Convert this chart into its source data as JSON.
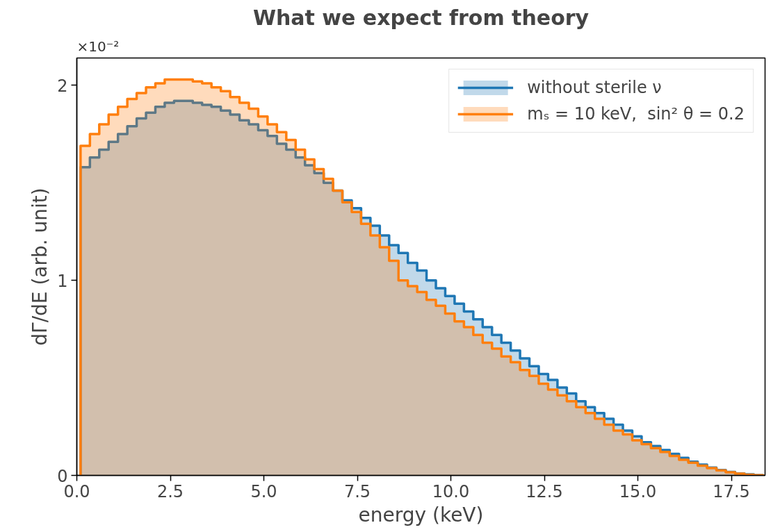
{
  "chart_data": {
    "type": "histogram",
    "title": "What we expect from theory",
    "xlabel": "energy (keV)",
    "ylabel": "dΓ/dE (arb. unit)",
    "annotations": [
      "×10⁻²"
    ],
    "bins": [
      0.1,
      0.35,
      0.6,
      0.85,
      1.1,
      1.35,
      1.6,
      1.85,
      2.1,
      2.35,
      2.6,
      2.85,
      3.1,
      3.35,
      3.6,
      3.85,
      4.1,
      4.35,
      4.6,
      4.85,
      5.1,
      5.35,
      5.6,
      5.85,
      6.1,
      6.35,
      6.6,
      6.85,
      7.1,
      7.35,
      7.6,
      7.85,
      8.1,
      8.35,
      8.6,
      8.85,
      9.1,
      9.35,
      9.6,
      9.85,
      10.1,
      10.35,
      10.6,
      10.85,
      11.1,
      11.35,
      11.6,
      11.85,
      12.1,
      12.35,
      12.6,
      12.85,
      13.1,
      13.35,
      13.6,
      13.85,
      14.1,
      14.35,
      14.6,
      14.85,
      15.1,
      15.35,
      15.6,
      15.85,
      16.1,
      16.35,
      16.6,
      16.85,
      17.1,
      17.35,
      17.6,
      17.85,
      18.1,
      18.35
    ],
    "series": [
      {
        "name": "without sterile ν",
        "color": "#1f77b4",
        "values": [
          1.58,
          1.63,
          1.67,
          1.71,
          1.75,
          1.79,
          1.83,
          1.86,
          1.89,
          1.91,
          1.92,
          1.92,
          1.91,
          1.9,
          1.89,
          1.87,
          1.85,
          1.82,
          1.8,
          1.77,
          1.74,
          1.7,
          1.67,
          1.63,
          1.59,
          1.55,
          1.5,
          1.46,
          1.41,
          1.37,
          1.32,
          1.28,
          1.23,
          1.18,
          1.14,
          1.09,
          1.05,
          1.0,
          0.96,
          0.92,
          0.88,
          0.84,
          0.8,
          0.76,
          0.72,
          0.68,
          0.64,
          0.6,
          0.56,
          0.52,
          0.49,
          0.45,
          0.42,
          0.38,
          0.35,
          0.32,
          0.29,
          0.26,
          0.23,
          0.2,
          0.17,
          0.15,
          0.13,
          0.11,
          0.09,
          0.07,
          0.055,
          0.04,
          0.028,
          0.018,
          0.01,
          0.005,
          0.001
        ]
      },
      {
        "name": "mₛ = 10 keV,  sin² θ = 0.2",
        "color": "#ff7f0e",
        "values": [
          1.69,
          1.75,
          1.8,
          1.85,
          1.89,
          1.93,
          1.96,
          1.99,
          2.01,
          2.03,
          2.03,
          2.03,
          2.02,
          2.01,
          1.99,
          1.97,
          1.94,
          1.91,
          1.88,
          1.84,
          1.8,
          1.76,
          1.72,
          1.67,
          1.62,
          1.57,
          1.52,
          1.46,
          1.4,
          1.35,
          1.29,
          1.23,
          1.17,
          1.1,
          1.0,
          0.97,
          0.94,
          0.9,
          0.87,
          0.83,
          0.79,
          0.76,
          0.72,
          0.68,
          0.65,
          0.61,
          0.58,
          0.54,
          0.51,
          0.47,
          0.44,
          0.41,
          0.38,
          0.35,
          0.32,
          0.29,
          0.26,
          0.23,
          0.21,
          0.18,
          0.16,
          0.14,
          0.12,
          0.1,
          0.08,
          0.065,
          0.05,
          0.037,
          0.026,
          0.016,
          0.009,
          0.004,
          0.001
        ]
      }
    ],
    "xlim": [
      0,
      18.4
    ],
    "ylim": [
      0,
      2.14
    ],
    "xticks": [
      {
        "value": 0,
        "label": "0.0"
      },
      2.5,
      {
        "value": 5,
        "label": "5.0"
      },
      7.5,
      {
        "value": 10,
        "label": "10.0"
      },
      12.5,
      {
        "value": 15,
        "label": "15.0"
      },
      17.5
    ],
    "yticks": [
      0,
      1,
      2
    ],
    "grid": false,
    "legend": "top right"
  }
}
